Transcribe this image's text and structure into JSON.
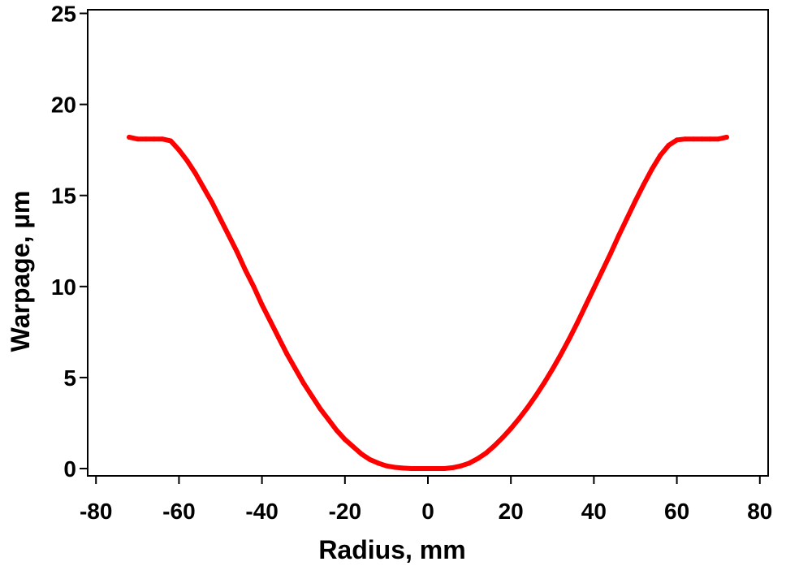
{
  "chart_data": {
    "type": "line",
    "title": "",
    "xlabel": "Radius, mm",
    "ylabel": "Warpage, µm",
    "xlim": [
      -82,
      82
    ],
    "ylim": [
      -0.4,
      25.2
    ],
    "xticks": [
      -80,
      -60,
      -40,
      -20,
      0,
      20,
      40,
      60,
      80
    ],
    "yticks": [
      0,
      5,
      10,
      15,
      20,
      25
    ],
    "grid": false,
    "legend": "none",
    "series": [
      {
        "color": "#ff0000",
        "x": [
          -72,
          -70,
          -68,
          -66,
          -64,
          -62,
          -60,
          -58,
          -56,
          -54,
          -52,
          -50,
          -48,
          -46,
          -44,
          -42,
          -40,
          -38,
          -36,
          -34,
          -32,
          -30,
          -28,
          -26,
          -24,
          -22,
          -20,
          -18,
          -16,
          -14,
          -12,
          -10,
          -8,
          -6,
          -4,
          -2,
          0,
          2,
          4,
          6,
          8,
          10,
          12,
          14,
          16,
          18,
          20,
          22,
          24,
          26,
          28,
          30,
          32,
          34,
          36,
          38,
          40,
          42,
          44,
          46,
          48,
          50,
          52,
          54,
          56,
          58,
          60,
          62,
          64,
          66,
          68,
          70,
          72
        ],
        "y": [
          18.2,
          18.1,
          18.1,
          18.1,
          18.1,
          18.0,
          17.5,
          16.9,
          16.2,
          15.4,
          14.6,
          13.7,
          12.8,
          11.9,
          10.9,
          10.0,
          9.0,
          8.1,
          7.2,
          6.3,
          5.5,
          4.7,
          4.0,
          3.3,
          2.7,
          2.1,
          1.6,
          1.2,
          0.8,
          0.5,
          0.3,
          0.15,
          0.07,
          0.03,
          0.0,
          0.0,
          0.0,
          0.0,
          0.0,
          0.05,
          0.15,
          0.3,
          0.55,
          0.85,
          1.25,
          1.7,
          2.2,
          2.75,
          3.35,
          4.0,
          4.7,
          5.45,
          6.25,
          7.1,
          8.0,
          8.95,
          9.9,
          10.85,
          11.8,
          12.8,
          13.75,
          14.7,
          15.6,
          16.45,
          17.2,
          17.75,
          18.05,
          18.1,
          18.1,
          18.1,
          18.1,
          18.1,
          18.2
        ]
      }
    ]
  }
}
